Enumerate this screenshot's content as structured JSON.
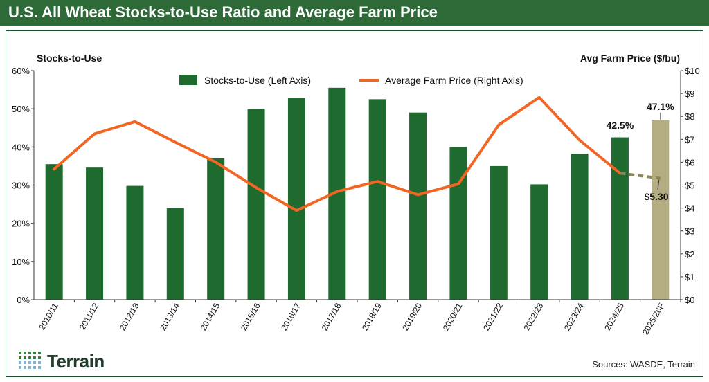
{
  "header": {
    "title": "U.S. All Wheat Stocks-to-Use Ratio and Average Farm Price"
  },
  "footer": {
    "source": "Sources: WASDE, Terrain",
    "logo_text": "Terrain"
  },
  "colors": {
    "brand_green": "#2d6a38",
    "bar_green": "#1f6b2f",
    "forecast_bar": "#b5ad82",
    "price_line": "#f26522",
    "forecast_line": "#8c8557"
  },
  "chart_data": {
    "type": "bar",
    "categories": [
      "2010/11",
      "2011/12",
      "2012/13",
      "2013/14",
      "2014/15",
      "2015/16",
      "2016/17",
      "2017/18",
      "2018/19",
      "2019/20",
      "2020/21",
      "2021/22",
      "2022/23",
      "2023/24",
      "2024/25",
      "2025/26F"
    ],
    "series": [
      {
        "name": "Stocks-to-Use (Left Axis)",
        "type": "bar",
        "axis": "left",
        "values": [
          35.5,
          34.6,
          29.8,
          24.0,
          37.0,
          50.0,
          52.9,
          55.5,
          52.5,
          49.0,
          40.0,
          35.0,
          30.2,
          38.2,
          42.5,
          47.1
        ]
      },
      {
        "name": "Average Farm Price (Right Axis)",
        "type": "line",
        "axis": "right",
        "values": [
          5.7,
          7.24,
          7.77,
          6.87,
          6.0,
          4.89,
          3.89,
          4.72,
          5.16,
          4.58,
          5.05,
          7.63,
          8.83,
          6.96,
          5.52,
          5.3
        ]
      }
    ],
    "forecast_index": 15,
    "left_axis": {
      "title": "Stocks-to-Use",
      "ylim": [
        0,
        60
      ],
      "ticks": [
        "0%",
        "10%",
        "20%",
        "30%",
        "40%",
        "50%",
        "60%"
      ]
    },
    "right_axis": {
      "title": "Avg Farm Price ($/bu)",
      "ylim": [
        0,
        10
      ],
      "ticks": [
        "$0",
        "$1",
        "$2",
        "$3",
        "$4",
        "$5",
        "$6",
        "$7",
        "$8",
        "$9",
        "$10"
      ]
    },
    "annotations": [
      {
        "text": "42.5%",
        "category": "2024/25"
      },
      {
        "text": "47.1%",
        "category": "2025/26F"
      },
      {
        "text": "$5.30",
        "category": "2025/26F"
      }
    ],
    "legend_position": "top-center",
    "grid": false
  }
}
